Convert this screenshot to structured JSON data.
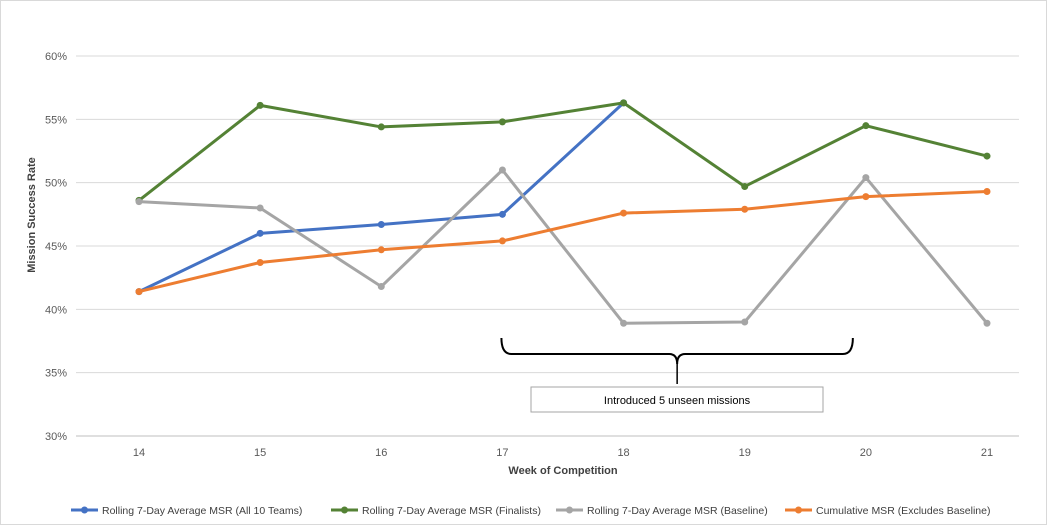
{
  "chart_data": {
    "type": "line",
    "title": "",
    "xlabel": "Week of Competition",
    "ylabel": "Mission Success Rate",
    "categories": [
      "14",
      "15",
      "16",
      "17",
      "18",
      "19",
      "20",
      "21"
    ],
    "ylim": [
      30,
      60
    ],
    "yticks": [
      "30%",
      "35%",
      "40%",
      "45%",
      "50%",
      "55%",
      "60%"
    ],
    "grid": true,
    "legend_position": "bottom",
    "series": [
      {
        "name": "Rolling 7-Day Average MSR (All 10 Teams)",
        "color": "#4472c4",
        "values": [
          41.4,
          46.0,
          46.7,
          47.5,
          56.3,
          null,
          null,
          null
        ]
      },
      {
        "name": "Rolling 7-Day Average MSR (Finalists)",
        "color": "#548235",
        "values": [
          48.6,
          56.1,
          54.4,
          54.8,
          56.3,
          49.7,
          54.5,
          52.1
        ]
      },
      {
        "name": "Rolling 7-Day Average MSR (Baseline)",
        "color": "#a5a5a5",
        "values": [
          48.5,
          48.0,
          41.8,
          51.0,
          38.9,
          39.0,
          50.4,
          38.9
        ]
      },
      {
        "name": "Cumulative MSR (Excludes Baseline)",
        "color": "#ed7d31",
        "values": [
          41.4,
          43.7,
          44.7,
          45.4,
          47.6,
          47.9,
          48.9,
          49.3
        ]
      }
    ],
    "annotation": {
      "text": "Introduced 5 unseen missions",
      "span": [
        "17",
        "20"
      ]
    }
  }
}
